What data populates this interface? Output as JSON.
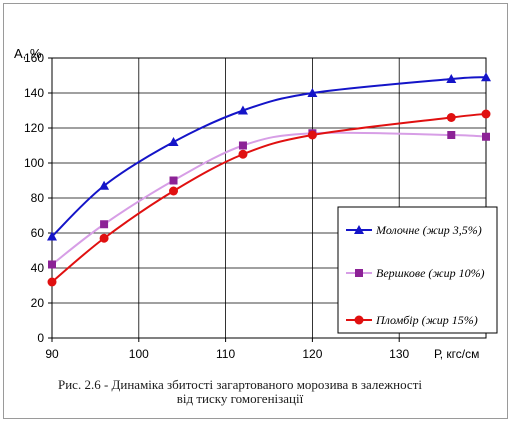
{
  "chart_data": {
    "type": "line",
    "title": "",
    "xlabel": "Р, кгс/см",
    "ylabel": "A, %",
    "xlim": [
      90,
      140
    ],
    "ylim": [
      0,
      160
    ],
    "x_ticks": [
      90,
      100,
      110,
      120,
      130
    ],
    "x_tick_labels": [
      "90",
      "100",
      "110",
      "120",
      "130"
    ],
    "y_ticks": [
      0,
      20,
      40,
      60,
      80,
      100,
      120,
      140,
      160
    ],
    "y_tick_labels": [
      "0",
      "20",
      "40",
      "60",
      "80",
      "100",
      "120",
      "140",
      "160"
    ],
    "grid": {
      "vertical": true,
      "horizontal": true,
      "style": "solid"
    },
    "legend_position": "right-bottom",
    "series": [
      {
        "name": "Молочне (жир 3,5%)",
        "marker": "triangle",
        "color": "#1414c8",
        "x": [
          90,
          96,
          104,
          112,
          120,
          136,
          140
        ],
        "y": [
          58,
          87,
          112,
          130,
          140,
          148,
          149
        ]
      },
      {
        "name": "Вершкове (жир 10%)",
        "marker": "square",
        "color": "#8c2296",
        "line_color": "#d79ee6",
        "x": [
          90,
          96,
          104,
          112,
          120,
          136,
          140
        ],
        "y": [
          42,
          65,
          90,
          110,
          117,
          116,
          115
        ]
      },
      {
        "name": "Пломбір (жир 15%)",
        "marker": "circle",
        "color": "#e01010",
        "x": [
          90,
          96,
          104,
          112,
          120,
          136,
          140
        ],
        "y": [
          32,
          57,
          84,
          105,
          116,
          126,
          128
        ]
      }
    ]
  },
  "caption": {
    "line1": "Рис. 2.6 -  Динаміка збитості загартованого морозива в залежності",
    "line2": "від тиску гомогенізації"
  }
}
